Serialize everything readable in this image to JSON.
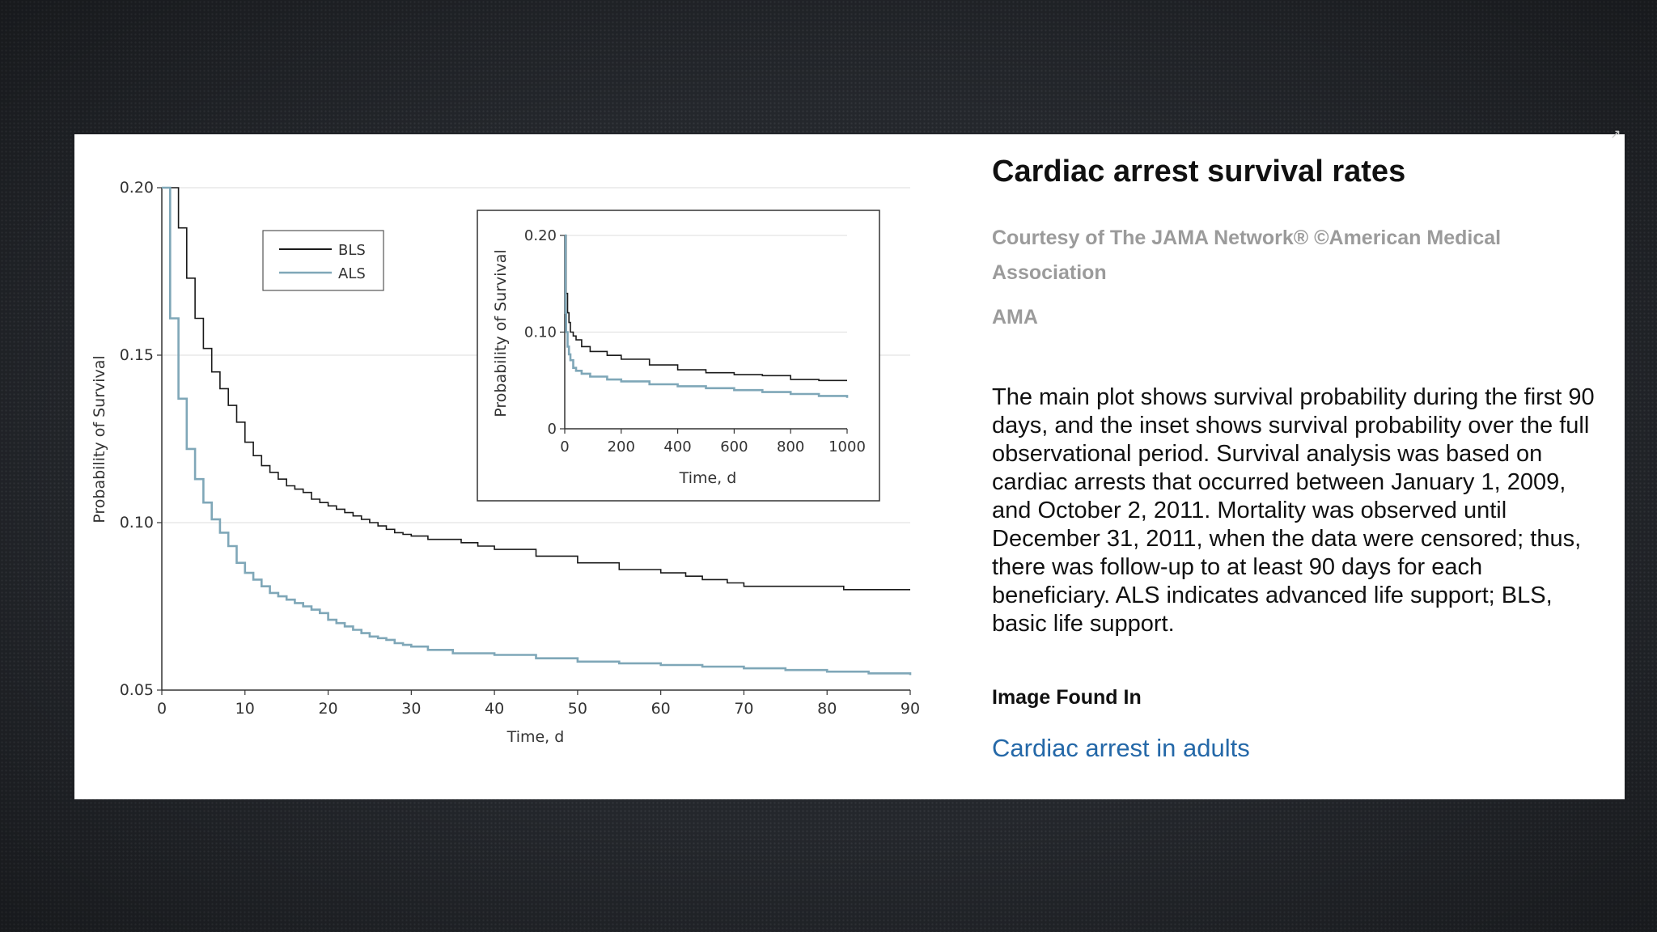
{
  "panel": {
    "title": "Cardiac arrest survival rates",
    "credit": "Courtesy of The JAMA Network® ©American Medical Association",
    "source": "AMA",
    "caption": "The main plot shows survival probability during the first 90 days, and the inset shows survival probability over the full observational period. Survival analysis was based on cardiac arrests that occurred between January 1, 2009, and October 2, 2011. Mortality was observed until December 31, 2011, when the data were censored; thus, there was follow-up to at least 90 days for each beneficiary. ALS indicates advanced life support; BLS, basic life support.",
    "found_label": "Image Found In",
    "found_link": "Cardiac arrest in adults"
  },
  "colors": {
    "bls": "#1a1a1a",
    "als": "#7fa7b8",
    "grid": "#e3e3e3",
    "link": "#2468a8"
  },
  "chart_data": [
    {
      "type": "line",
      "step": true,
      "xlabel": "Time, d",
      "ylabel": "Probability of Survival",
      "xlim": [
        0,
        90
      ],
      "ylim": [
        0.05,
        0.2
      ],
      "xticks": [
        0,
        10,
        20,
        30,
        40,
        50,
        60,
        70,
        80,
        90
      ],
      "yticks": [
        0.05,
        0.1,
        0.15,
        0.2
      ],
      "ytick_labels": [
        "0.05",
        "0.10",
        "0.15",
        "0.20"
      ],
      "grid": true,
      "legend": "top-left",
      "series": [
        {
          "name": "BLS",
          "x": [
            0,
            1,
            2,
            3,
            4,
            5,
            6,
            7,
            8,
            9,
            10,
            11,
            12,
            13,
            14,
            15,
            16,
            17,
            18,
            19,
            20,
            21,
            22,
            23,
            24,
            25,
            26,
            27,
            28,
            29,
            30,
            32,
            34,
            36,
            38,
            40,
            45,
            50,
            55,
            60,
            63,
            65,
            68,
            70,
            75,
            80,
            82,
            85,
            90
          ],
          "y": [
            0.2,
            0.2,
            0.188,
            0.173,
            0.161,
            0.152,
            0.145,
            0.14,
            0.135,
            0.13,
            0.124,
            0.12,
            0.117,
            0.115,
            0.113,
            0.111,
            0.11,
            0.109,
            0.107,
            0.106,
            0.105,
            0.104,
            0.103,
            0.102,
            0.101,
            0.1,
            0.099,
            0.098,
            0.097,
            0.0965,
            0.096,
            0.095,
            0.095,
            0.094,
            0.093,
            0.092,
            0.09,
            0.088,
            0.086,
            0.085,
            0.084,
            0.083,
            0.082,
            0.081,
            0.081,
            0.081,
            0.08,
            0.08,
            0.08
          ]
        },
        {
          "name": "ALS",
          "x": [
            0,
            1,
            2,
            3,
            4,
            5,
            6,
            7,
            8,
            9,
            10,
            11,
            12,
            13,
            14,
            15,
            16,
            17,
            18,
            19,
            20,
            21,
            22,
            23,
            24,
            25,
            26,
            27,
            28,
            29,
            30,
            32,
            35,
            40,
            45,
            50,
            55,
            60,
            65,
            70,
            75,
            80,
            85,
            90
          ],
          "y": [
            0.2,
            0.161,
            0.137,
            0.122,
            0.113,
            0.106,
            0.101,
            0.097,
            0.093,
            0.088,
            0.085,
            0.083,
            0.081,
            0.079,
            0.078,
            0.077,
            0.076,
            0.075,
            0.074,
            0.073,
            0.071,
            0.07,
            0.069,
            0.068,
            0.067,
            0.066,
            0.0655,
            0.065,
            0.064,
            0.0635,
            0.063,
            0.062,
            0.061,
            0.0605,
            0.0595,
            0.0585,
            0.058,
            0.0575,
            0.057,
            0.0565,
            0.056,
            0.0555,
            0.055,
            0.0545
          ]
        }
      ]
    },
    {
      "type": "line",
      "step": true,
      "xlabel": "Time, d",
      "ylabel": "Probability of Survival",
      "xlim": [
        0,
        1000
      ],
      "ylim": [
        0,
        0.2
      ],
      "xticks": [
        0,
        200,
        400,
        600,
        800,
        1000
      ],
      "yticks": [
        0,
        0.1,
        0.2
      ],
      "ytick_labels": [
        "0",
        "0.10",
        "0.20"
      ],
      "grid": true,
      "series": [
        {
          "name": "BLS",
          "x": [
            0,
            5,
            10,
            15,
            20,
            30,
            40,
            60,
            90,
            150,
            200,
            300,
            400,
            500,
            600,
            700,
            800,
            900,
            1000
          ],
          "y": [
            0.2,
            0.14,
            0.12,
            0.11,
            0.1,
            0.096,
            0.092,
            0.085,
            0.08,
            0.076,
            0.072,
            0.066,
            0.061,
            0.058,
            0.056,
            0.055,
            0.051,
            0.05,
            0.05
          ]
        },
        {
          "name": "ALS",
          "x": [
            0,
            3,
            5,
            10,
            15,
            20,
            30,
            40,
            60,
            90,
            150,
            200,
            300,
            400,
            500,
            600,
            700,
            800,
            900,
            1000
          ],
          "y": [
            0.2,
            0.12,
            0.1,
            0.085,
            0.077,
            0.071,
            0.063,
            0.06,
            0.057,
            0.054,
            0.051,
            0.049,
            0.046,
            0.044,
            0.042,
            0.04,
            0.038,
            0.036,
            0.034,
            0.032
          ]
        }
      ]
    }
  ]
}
